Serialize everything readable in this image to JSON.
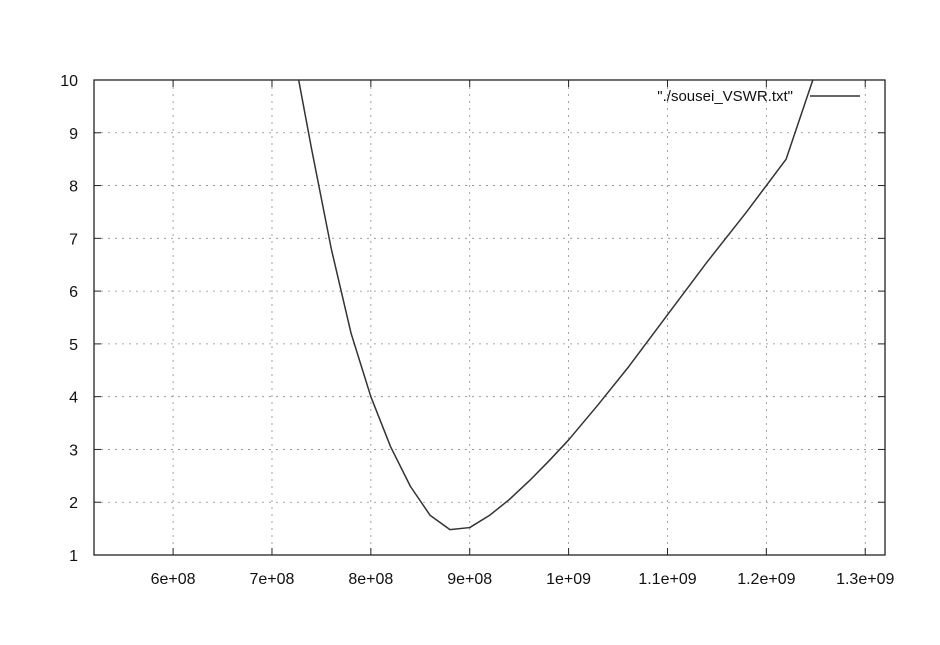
{
  "chart_data": {
    "type": "line",
    "title": "",
    "xlabel": "",
    "ylabel": "",
    "xlim": [
      520000000,
      1320000000
    ],
    "ylim": [
      1,
      10
    ],
    "grid": true,
    "legend_position": "top-right",
    "x_ticks": [
      {
        "value": 600000000,
        "label": "6e+08"
      },
      {
        "value": 700000000,
        "label": "7e+08"
      },
      {
        "value": 800000000,
        "label": "8e+08"
      },
      {
        "value": 900000000,
        "label": "9e+08"
      },
      {
        "value": 1000000000,
        "label": "1e+09"
      },
      {
        "value": 1100000000,
        "label": "1.1e+09"
      },
      {
        "value": 1200000000,
        "label": "1.2e+09"
      },
      {
        "value": 1300000000,
        "label": "1.3e+09"
      }
    ],
    "y_ticks": [
      {
        "value": 1,
        "label": "1"
      },
      {
        "value": 2,
        "label": "2"
      },
      {
        "value": 3,
        "label": "3"
      },
      {
        "value": 4,
        "label": "4"
      },
      {
        "value": 5,
        "label": "5"
      },
      {
        "value": 6,
        "label": "6"
      },
      {
        "value": 7,
        "label": "7"
      },
      {
        "value": 8,
        "label": "8"
      },
      {
        "value": 9,
        "label": "9"
      },
      {
        "value": 10,
        "label": "10"
      }
    ],
    "series": [
      {
        "name": "\"./sousei_VSWR.txt\"",
        "color": "#333333",
        "x": [
          727000000,
          740000000,
          760000000,
          780000000,
          800000000,
          820000000,
          840000000,
          860000000,
          880000000,
          900000000,
          920000000,
          940000000,
          960000000,
          980000000,
          1000000000,
          1030000000,
          1060000000,
          1100000000,
          1140000000,
          1180000000,
          1220000000,
          1247000000
        ],
        "y": [
          10,
          8.7,
          6.8,
          5.2,
          4.0,
          3.05,
          2.3,
          1.75,
          1.48,
          1.52,
          1.75,
          2.05,
          2.4,
          2.78,
          3.18,
          3.85,
          4.55,
          5.55,
          6.55,
          7.5,
          8.5,
          10
        ]
      }
    ]
  }
}
